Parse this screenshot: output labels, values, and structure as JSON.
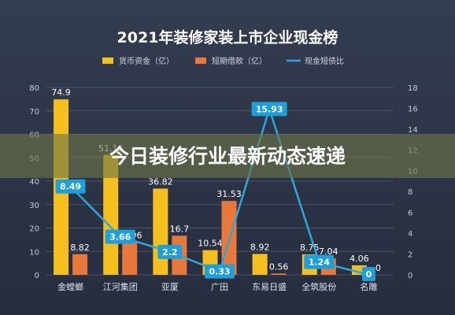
{
  "chart_data": {
    "type": "bar",
    "title": "2021年装修家装上市企业现金榜",
    "categories": [
      "金螳螂",
      "江河集团",
      "亚厦",
      "广田",
      "东易日盛",
      "全筑股份",
      "名雕"
    ],
    "series": [
      {
        "name": "货币资金（亿）",
        "kind": "bar",
        "axis": "left",
        "color": "#f5bf1d",
        "values": [
          74.9,
          51.16,
          36.82,
          10.54,
          8.92,
          8.75,
          4.06
        ]
      },
      {
        "name": "短期借款（亿）",
        "kind": "bar",
        "axis": "left",
        "color": "#e8793b",
        "values": [
          8.82,
          13.96,
          16.7,
          31.53,
          0.56,
          7.04,
          0
        ]
      },
      {
        "name": "现金短债比",
        "kind": "line",
        "axis": "right",
        "color": "#2fa6dc",
        "values": [
          8.49,
          3.66,
          2.2,
          0.33,
          15.93,
          1.24,
          0
        ]
      }
    ],
    "y_left": {
      "min": 0,
      "max": 80,
      "ticks": [
        0,
        10,
        20,
        30,
        40,
        50,
        60,
        70,
        80
      ]
    },
    "y_right": {
      "min": 0,
      "max": 18,
      "ticks": [
        0,
        2,
        4,
        6,
        8,
        10,
        12,
        14,
        16,
        18
      ]
    },
    "bar_labels": [
      [
        "74.9",
        "51.16",
        "36.82",
        "10.54",
        "8.92",
        "8.75",
        "4.06"
      ],
      [
        "8.82",
        "13.96",
        "16.7",
        "31.53",
        "0.56",
        "7.04",
        "0"
      ]
    ],
    "line_labels": [
      "8.49",
      "3.66",
      "2.2",
      "0.33",
      "15.93",
      "1.24",
      "0"
    ],
    "legend_position": "top-center",
    "grid": true
  },
  "overlay": {
    "text": "今日装修行业最新动态速递"
  }
}
